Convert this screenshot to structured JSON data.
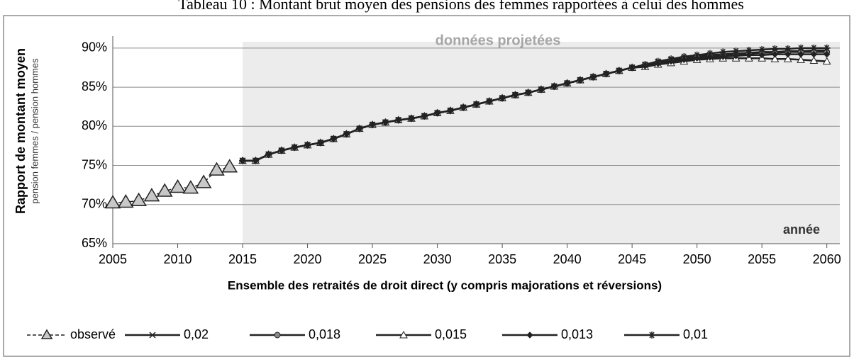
{
  "chart_data": {
    "type": "line",
    "title": "Tableau 10 : Montant brut moyen des pensions des femmes rapportées à celui des hommes",
    "annotation": "données projetées",
    "annotation_corner": "année",
    "x_label": "Ensemble des retraités de droit direct (y compris majorations et réversions)",
    "y_label": "Rapport de montant moyen",
    "y_sublabel": "pension femmes / pension hommes",
    "x": [
      2005,
      2006,
      2007,
      2008,
      2009,
      2010,
      2011,
      2012,
      2013,
      2014,
      2015,
      2016,
      2017,
      2018,
      2019,
      2020,
      2021,
      2022,
      2023,
      2024,
      2025,
      2026,
      2027,
      2028,
      2029,
      2030,
      2031,
      2032,
      2033,
      2034,
      2035,
      2036,
      2037,
      2038,
      2039,
      2040,
      2041,
      2042,
      2043,
      2044,
      2045,
      2046,
      2047,
      2048,
      2049,
      2050,
      2051,
      2052,
      2053,
      2054,
      2055,
      2056,
      2057,
      2058,
      2059,
      2060
    ],
    "xlim": [
      2005,
      2061
    ],
    "xticks": [
      2005,
      2010,
      2015,
      2020,
      2025,
      2030,
      2035,
      2040,
      2045,
      2050,
      2055,
      2060
    ],
    "ylim": [
      65,
      90.8
    ],
    "yticks": [
      {
        "value": 65,
        "label": "65%"
      },
      {
        "value": 70,
        "label": "70%"
      },
      {
        "value": 75,
        "label": "75%"
      },
      {
        "value": 80,
        "label": "80%"
      },
      {
        "value": 85,
        "label": "85%"
      },
      {
        "value": 90,
        "label": "90%"
      }
    ],
    "grid": true,
    "series": [
      {
        "name": "observé",
        "color": "#222222",
        "marker": "triangle",
        "dashed": true,
        "values": [
          70.2,
          70.3,
          70.5,
          71.1,
          71.7,
          72.2,
          72.1,
          72.8,
          74.4,
          74.8,
          null,
          null,
          null,
          null,
          null,
          null,
          null,
          null,
          null,
          null,
          null,
          null,
          null,
          null,
          null,
          null,
          null,
          null,
          null,
          null,
          null,
          null,
          null,
          null,
          null,
          null,
          null,
          null,
          null,
          null,
          null,
          null,
          null,
          null,
          null,
          null,
          null,
          null,
          null,
          null,
          null,
          null,
          null,
          null,
          null,
          null
        ]
      },
      {
        "name": "0,02",
        "color": "#222222",
        "marker": "x",
        "values": [
          null,
          null,
          null,
          null,
          null,
          null,
          null,
          null,
          null,
          null,
          75.6,
          75.6,
          76.4,
          76.9,
          77.3,
          77.6,
          77.9,
          78.4,
          79.0,
          79.7,
          80.2,
          80.5,
          80.8,
          81.0,
          81.3,
          81.7,
          82.0,
          82.4,
          82.8,
          83.2,
          83.6,
          84.0,
          84.3,
          84.7,
          85.1,
          85.5,
          85.9,
          86.3,
          86.7,
          87.1,
          87.5,
          87.8,
          88.2,
          88.5,
          88.7,
          88.9,
          89.1,
          89.2,
          89.3,
          89.4,
          89.5,
          89.5,
          89.6,
          89.6,
          89.7,
          89.7
        ]
      },
      {
        "name": "0,018",
        "color": "#222222",
        "marker": "circle",
        "values": [
          null,
          null,
          null,
          null,
          null,
          null,
          null,
          null,
          null,
          null,
          75.6,
          75.6,
          76.4,
          76.9,
          77.3,
          77.6,
          77.9,
          78.4,
          79.0,
          79.7,
          80.2,
          80.5,
          80.8,
          81.0,
          81.3,
          81.7,
          82.0,
          82.4,
          82.8,
          83.2,
          83.6,
          84.0,
          84.3,
          84.7,
          85.1,
          85.5,
          85.9,
          86.3,
          86.7,
          87.1,
          87.5,
          87.8,
          88.1,
          88.4,
          88.6,
          88.8,
          89.0,
          89.1,
          89.2,
          89.3,
          89.4,
          89.4,
          89.5,
          89.5,
          89.5,
          89.5
        ]
      },
      {
        "name": "0,015",
        "color": "#222222",
        "marker": "small-triangle",
        "values": [
          null,
          null,
          null,
          null,
          null,
          null,
          null,
          null,
          null,
          null,
          75.6,
          75.6,
          76.4,
          76.9,
          77.3,
          77.6,
          77.9,
          78.4,
          79.0,
          79.7,
          80.2,
          80.5,
          80.8,
          81.0,
          81.3,
          81.7,
          82.0,
          82.4,
          82.8,
          83.2,
          83.6,
          84.0,
          84.3,
          84.7,
          85.1,
          85.5,
          85.9,
          86.3,
          86.7,
          87.1,
          87.5,
          87.6,
          87.9,
          88.1,
          88.3,
          88.5,
          88.6,
          88.7,
          88.7,
          88.7,
          88.7,
          88.6,
          88.6,
          88.5,
          88.4,
          88.3
        ]
      },
      {
        "name": "0,013",
        "color": "#222222",
        "marker": "diamond",
        "values": [
          null,
          null,
          null,
          null,
          null,
          null,
          null,
          null,
          null,
          null,
          75.6,
          75.6,
          76.4,
          76.9,
          77.3,
          77.6,
          77.9,
          78.4,
          79.0,
          79.7,
          80.2,
          80.5,
          80.8,
          81.0,
          81.3,
          81.7,
          82.0,
          82.4,
          82.8,
          83.2,
          83.6,
          84.0,
          84.3,
          84.7,
          85.1,
          85.5,
          85.9,
          86.3,
          86.7,
          87.1,
          87.5,
          87.7,
          88.0,
          88.3,
          88.5,
          88.7,
          88.8,
          88.9,
          89.0,
          89.1,
          89.1,
          89.2,
          89.2,
          89.2,
          89.2,
          89.2
        ]
      },
      {
        "name": "0,01",
        "color": "#222222",
        "marker": "star",
        "values": [
          null,
          null,
          null,
          null,
          null,
          null,
          null,
          null,
          null,
          null,
          75.6,
          75.6,
          76.4,
          76.9,
          77.3,
          77.6,
          77.9,
          78.4,
          79.0,
          79.7,
          80.2,
          80.5,
          80.8,
          81.0,
          81.3,
          81.7,
          82.0,
          82.4,
          82.8,
          83.2,
          83.6,
          84.0,
          84.3,
          84.7,
          85.1,
          85.5,
          85.9,
          86.3,
          86.7,
          87.1,
          87.5,
          87.9,
          88.3,
          88.6,
          88.9,
          89.1,
          89.3,
          89.5,
          89.6,
          89.7,
          89.8,
          89.9,
          89.9,
          90.0,
          90.0,
          90.0
        ]
      }
    ]
  }
}
